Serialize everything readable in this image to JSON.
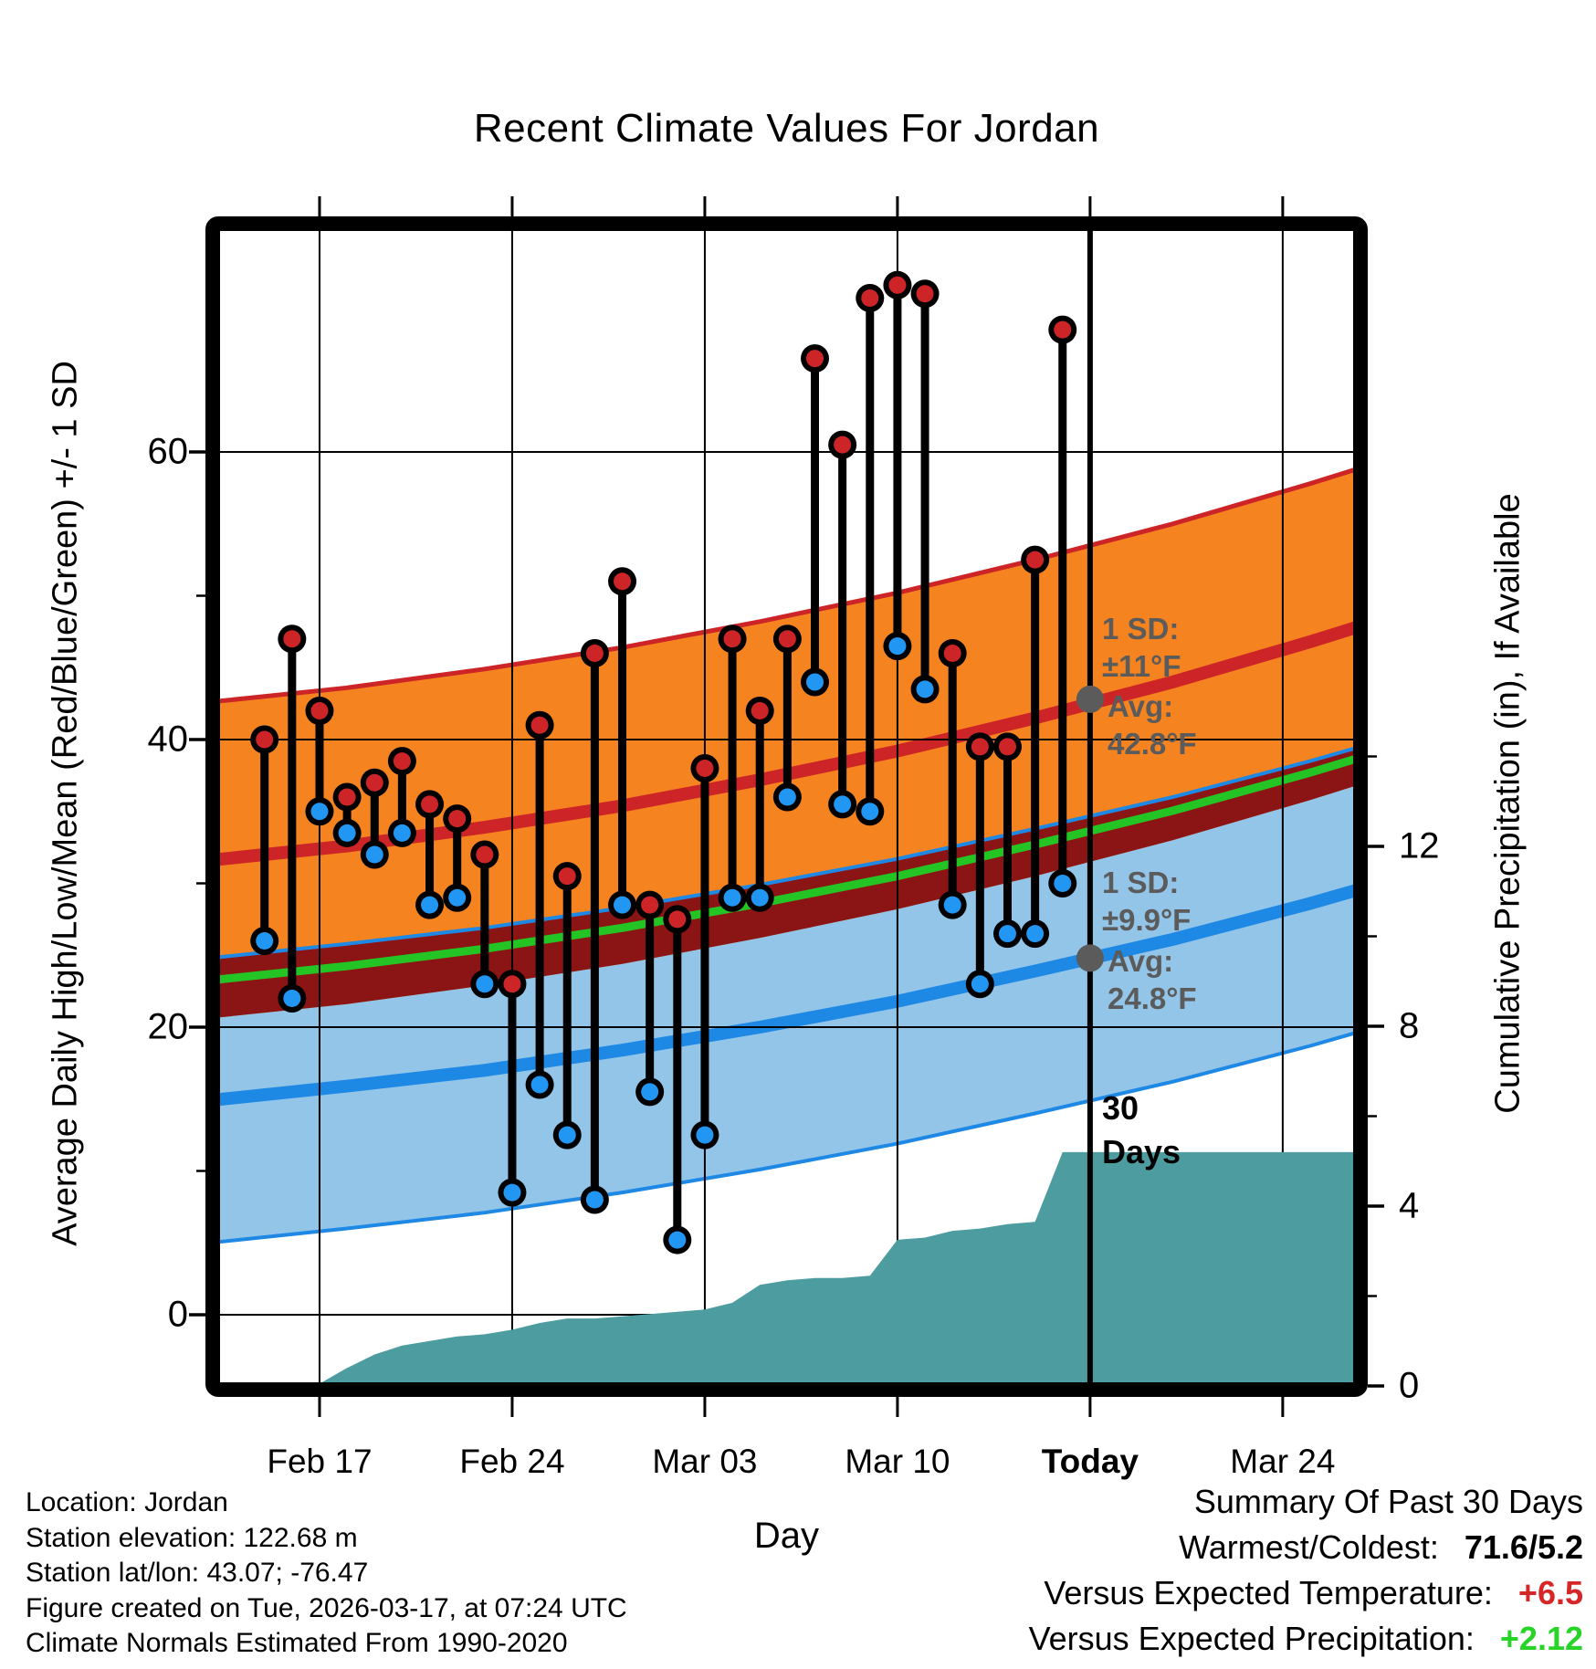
{
  "chart_data": {
    "type": "line",
    "title": "Recent Climate Values For Jordan",
    "xlabel": "Day",
    "ylabel_left": "Average Daily High/Low/Mean (Red/Blue/Green) +/- 1 SD",
    "ylabel_right": "Cumulative Precipitation (in), If Available",
    "ylim_left": [
      -5,
      75
    ],
    "ylim_right": [
      0,
      26
    ],
    "grid": true,
    "legend": "none",
    "days": [
      "Feb 15",
      "Feb 16",
      "Feb 17",
      "Feb 18",
      "Feb 19",
      "Feb 20",
      "Feb 21",
      "Feb 22",
      "Feb 23",
      "Feb 24",
      "Feb 25",
      "Feb 26",
      "Feb 27",
      "Feb 28",
      "Mar 01",
      "Mar 02",
      "Mar 03",
      "Mar 04",
      "Mar 05",
      "Mar 06",
      "Mar 07",
      "Mar 08",
      "Mar 09",
      "Mar 10",
      "Mar 11",
      "Mar 12",
      "Mar 13",
      "Mar 14",
      "Mar 15",
      "Mar 16"
    ],
    "series": [
      {
        "name": "daily-high-f",
        "color": "#CD2427",
        "values": [
          40,
          47,
          42,
          36,
          37,
          38.5,
          35.5,
          34.5,
          32,
          23,
          41,
          30.5,
          46,
          51,
          28.5,
          27.5,
          38,
          47,
          42,
          47,
          66.5,
          60.5,
          70.7,
          71.6,
          71,
          46,
          39.5,
          39.5,
          52.5,
          68.5
        ]
      },
      {
        "name": "daily-low-f",
        "color": "#2196F3",
        "values": [
          26,
          22,
          35,
          33.5,
          32,
          33.5,
          28.5,
          29,
          23,
          8.5,
          16,
          12.5,
          8,
          28.5,
          15.5,
          5.2,
          12.5,
          29,
          29,
          36,
          44,
          35.5,
          35,
          46.5,
          43.5,
          28.5,
          23,
          26.5,
          26.5,
          30
        ]
      },
      {
        "name": "cumulative-precip-in",
        "color": "#4C9CA0",
        "values": [
          0,
          0,
          0.05,
          0.4,
          0.7,
          0.9,
          1.0,
          1.1,
          1.15,
          1.25,
          1.4,
          1.5,
          1.5,
          1.55,
          1.6,
          1.65,
          1.7,
          1.85,
          2.25,
          2.35,
          2.4,
          2.4,
          2.45,
          3.25,
          3.3,
          3.45,
          3.5,
          3.6,
          3.65,
          5.2
        ]
      }
    ],
    "normals": {
      "description": "climate normal curves, days since Feb 15",
      "t": [
        -2,
        3,
        8,
        13,
        18,
        23,
        28,
        33,
        38,
        40
      ],
      "high_avg": [
        31.6,
        32.6,
        33.9,
        35.4,
        37.2,
        39.2,
        41.5,
        44.0,
        46.8,
        48.0
      ],
      "low_avg": [
        14.9,
        15.9,
        17.0,
        18.4,
        20.0,
        21.8,
        23.9,
        26.1,
        28.6,
        29.7
      ],
      "sd_high": 11,
      "sd_low": 9.9,
      "today_t": 30,
      "today_high_avg": 42.8,
      "today_low_avg": 24.8
    }
  },
  "axes": {
    "left_ticks": [
      0,
      20,
      40,
      60
    ],
    "left_minor_ticks": [
      10,
      30,
      50
    ],
    "right_ticks": [
      0,
      4,
      8,
      12
    ],
    "right_minor_ticks": [
      2,
      6,
      10,
      14
    ],
    "x_tick_labels": [
      "Feb 17",
      "Feb 24",
      "Mar 03",
      "Mar 10",
      "Today",
      "Mar 24"
    ],
    "x_tick_days": [
      2,
      9,
      16,
      23,
      30,
      37
    ],
    "x_bold_label": "Today"
  },
  "colors": {
    "high_band": "#F5831F",
    "high_line": "#CD2427",
    "low_band": "#92C5E8",
    "low_line": "#1E88E5",
    "overlap_band": "#8B1515",
    "mean_line": "#25C425",
    "precip_fill": "#4C9CA0",
    "high_dot": "#CD2427",
    "low_dot": "#2196F3",
    "marker_gray": "#5B5B5B",
    "temp_anomaly": "#D62728",
    "precip_anomaly": "#28D428"
  },
  "annotations": {
    "sd_high": "1 SD:\n±11°F",
    "avg_high": "Avg:\n42.8°F",
    "sd_low": "1 SD:\n±9.9°F",
    "avg_low": "Avg:\n24.8°F",
    "days_marker": "30\nDays"
  },
  "footer": {
    "lines": [
      "Location: Jordan",
      "Station elevation: 122.68 m",
      "Station lat/lon: 43.07; -76.47",
      "Figure created on Tue, 2026-03-17, at 07:24 UTC",
      "Climate Normals Estimated From 1990-2020"
    ]
  },
  "summary": {
    "title": "Summary Of Past 30 Days",
    "warmest_label": "Warmest/Coldest:",
    "warmest_value": "71.6/5.2",
    "temp_label": "Versus Expected Temperature:",
    "temp_value": "+6.5",
    "precip_label": "Versus Expected Precipitation:",
    "precip_value": "+2.12"
  }
}
